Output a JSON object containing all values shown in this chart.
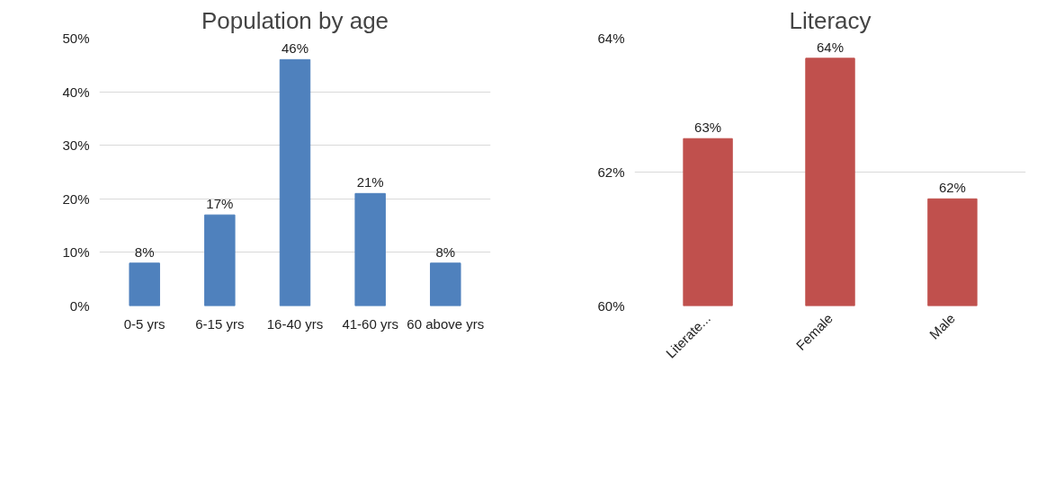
{
  "chart_data": [
    {
      "type": "bar",
      "title": "Population by age",
      "categories": [
        "0-5 yrs",
        "6-15 yrs",
        "16-40 yrs",
        "41-60 yrs",
        "60 above yrs"
      ],
      "values": [
        8,
        17,
        46,
        21,
        8
      ],
      "color": "#4f81bd",
      "value_labels": [
        "8%",
        "17%",
        "46%",
        "21%",
        "8%"
      ],
      "ylim": [
        0,
        50
      ],
      "yticks": [
        {
          "value": 0,
          "label": "0%"
        },
        {
          "value": 10,
          "label": "10%"
        },
        {
          "value": 20,
          "label": "20%"
        },
        {
          "value": 30,
          "label": "30%"
        },
        {
          "value": 40,
          "label": "40%"
        },
        {
          "value": 50,
          "label": "50%"
        }
      ],
      "grid": "y"
    },
    {
      "type": "bar",
      "title": "Literacy",
      "categories": [
        "Literate...",
        "Female",
        "Male"
      ],
      "values": [
        62.5,
        63.7,
        61.6
      ],
      "color": "#c0504d",
      "value_labels": [
        "63%",
        "64%",
        "62%"
      ],
      "ylim": [
        60,
        64
      ],
      "yticks": [
        {
          "value": 60,
          "label": "60%"
        },
        {
          "value": 62,
          "label": "62%"
        },
        {
          "value": 64,
          "label": "64%"
        }
      ],
      "grid": "y"
    }
  ]
}
